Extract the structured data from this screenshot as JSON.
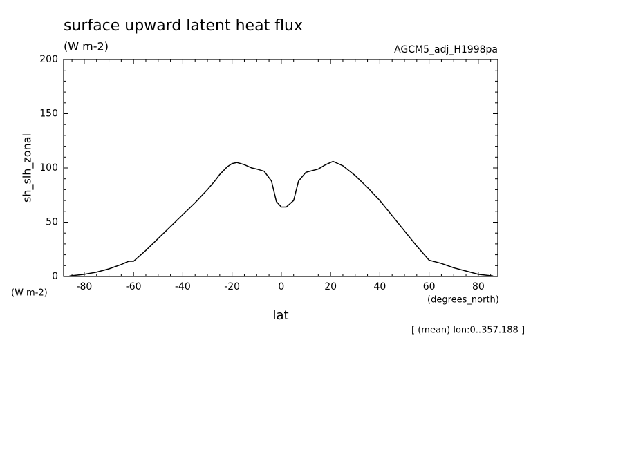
{
  "chart_data": {
    "type": "line",
    "title": "surface upward latent heat flux",
    "subtitle": "(W m-2)",
    "annotation": "AGCM5_adj_H1998pa",
    "y_label": "sh_slh_zonal",
    "y_units": "(W m-2)",
    "x_label": "lat",
    "x_units": "(degrees_north)",
    "note": "[ (mean) lon:0..357.188 ]",
    "x": [
      -86,
      -80,
      -75,
      -70,
      -65,
      -62,
      -60,
      -55,
      -50,
      -45,
      -40,
      -35,
      -30,
      -27,
      -25,
      -22,
      -20,
      -18,
      -15,
      -12,
      -10,
      -7,
      -4,
      -2,
      0,
      2,
      5,
      7,
      10,
      15,
      18,
      21,
      25,
      30,
      35,
      40,
      45,
      50,
      55,
      60,
      65,
      70,
      75,
      80,
      86
    ],
    "series": [
      {
        "name": "sh_slh_zonal",
        "color": "#000000",
        "values": [
          0.5,
          2,
          4,
          7,
          11,
          14,
          14,
          24,
          35,
          46,
          57,
          68,
          80,
          88,
          94,
          101,
          104,
          105,
          103,
          100,
          99,
          97,
          88,
          69,
          64,
          64,
          70,
          88,
          96,
          99,
          103,
          106,
          102,
          93,
          82,
          70,
          56,
          42,
          28,
          15,
          12,
          8,
          5,
          2,
          0.5
        ]
      }
    ],
    "xlim": [
      -88.4,
      87.9
    ],
    "ylim": [
      0,
      200
    ],
    "xticks": [
      -80,
      -60,
      -40,
      -20,
      0,
      20,
      40,
      60,
      80
    ],
    "yticks": [
      0,
      50,
      100,
      150,
      200
    ],
    "x_minor_ticks": [
      -85,
      -75,
      -70,
      -65,
      -55,
      -50,
      -45,
      -35,
      -30,
      -25,
      -15,
      -10,
      -5,
      5,
      10,
      15,
      25,
      30,
      35,
      45,
      50,
      55,
      65,
      70,
      75,
      85
    ],
    "y_minor_ticks": [
      10,
      20,
      30,
      40,
      60,
      70,
      80,
      90,
      110,
      120,
      130,
      140,
      160,
      170,
      180,
      190
    ]
  }
}
